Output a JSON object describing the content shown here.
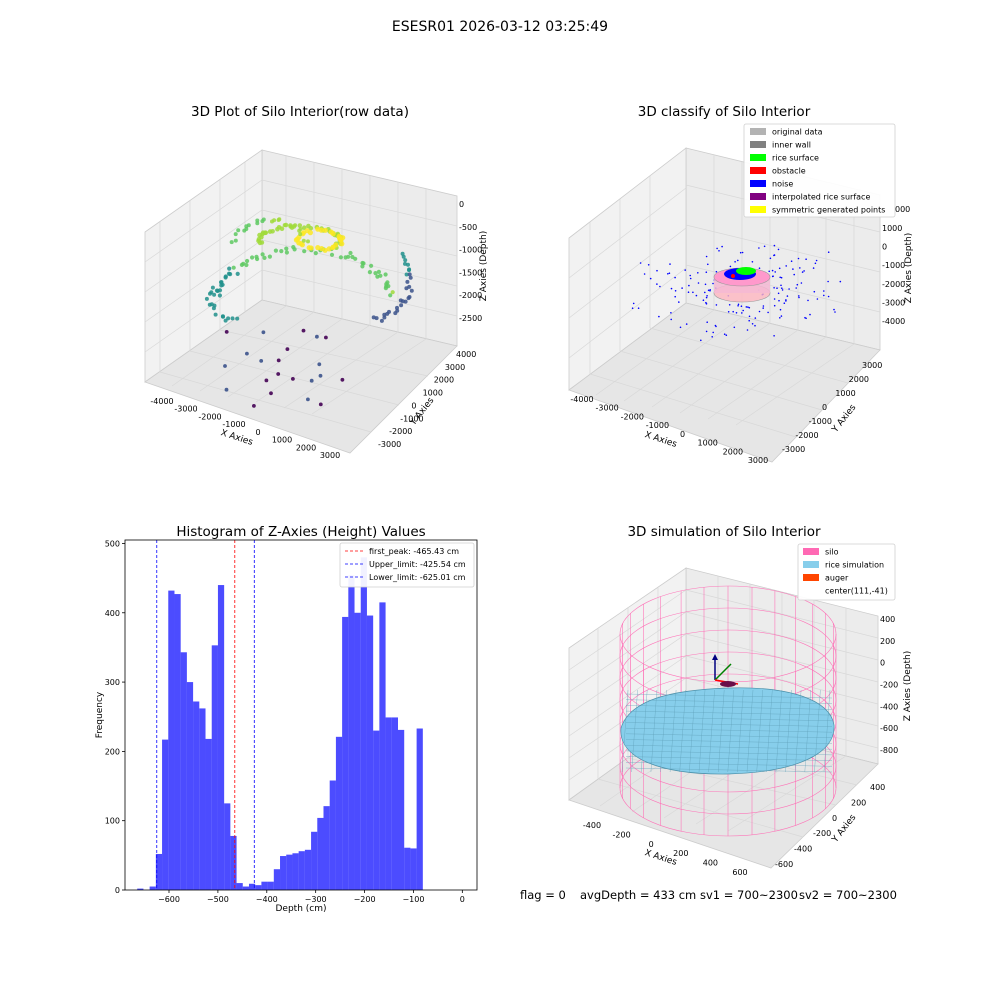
{
  "suptitle": "ESESR01 2026-03-12 03:25:49",
  "panels": {
    "raw": {
      "title": "3D Plot of Silo Interior(row data)",
      "xlabel": "X Axies",
      "ylabel": "Y Axies",
      "zlabel": "Z Axies (Depth)",
      "xticks": [
        "-4000",
        "-3000",
        "-2000",
        "-1000",
        "0",
        "1000",
        "2000",
        "3000"
      ],
      "yticks": [
        "-3000",
        "-2000",
        "-1000",
        "0",
        "1000",
        "2000",
        "3000",
        "4000"
      ],
      "zticks": [
        "0",
        "-500",
        "-1000",
        "-1500",
        "-2000",
        "-2500"
      ]
    },
    "classify": {
      "title": "3D classify of Silo Interior",
      "xlabel": "X Axies",
      "ylabel": "Y Axies",
      "zlabel": "Z Axies (Depth)",
      "xticks": [
        "-4000",
        "-3000",
        "-2000",
        "-1000",
        "0",
        "1000",
        "2000",
        "3000"
      ],
      "yticks": [
        "-3000",
        "-2000",
        "-1000",
        "0",
        "1000",
        "2000",
        "3000"
      ],
      "zticks": [
        "1000",
        "0",
        "-1000",
        "-2000",
        "-3000",
        "-4000"
      ],
      "ztick_partial": "000",
      "legend": [
        {
          "label": "original data",
          "color": "#b3b3b3"
        },
        {
          "label": "inner wall",
          "color": "#808080"
        },
        {
          "label": "rice surface",
          "color": "#00ff00"
        },
        {
          "label": "obstacle",
          "color": "#ff0000"
        },
        {
          "label": "noise",
          "color": "#0000ff"
        },
        {
          "label": "interpolated rice surface",
          "color": "#800080"
        },
        {
          "label": "symmetric generated points",
          "color": "#ffff00"
        }
      ]
    },
    "simulation": {
      "title": "3D simulation of Silo Interior",
      "xlabel": "X Axies",
      "ylabel": "Y Axies",
      "zlabel": "Z Axies (Depth)",
      "xticks": [
        "-400",
        "-200",
        "0",
        "200",
        "400",
        "600"
      ],
      "yticks": [
        "-600",
        "-400",
        "-200",
        "0",
        "200",
        "400"
      ],
      "zticks": [
        "400",
        "200",
        "0",
        "-200",
        "-400",
        "-600",
        "-800"
      ],
      "legend": [
        {
          "label": "silo",
          "color": "#ff69b4"
        },
        {
          "label": "rice simulation",
          "color": "#87ceeb"
        },
        {
          "label": "auger",
          "color": "#ff4500"
        },
        {
          "label": "center(111,-41)",
          "color": ""
        }
      ]
    }
  },
  "chart_data": {
    "type": "bar",
    "title": "Histogram of Z-Axies (Height) Values",
    "xlabel": "Depth (cm)",
    "ylabel": "Frequency",
    "xlim": [
      -690,
      30
    ],
    "ylim": [
      0,
      505
    ],
    "xticks": [
      -600,
      -500,
      -400,
      -300,
      -200,
      -100,
      0
    ],
    "yticks": [
      0,
      100,
      200,
      300,
      400,
      500
    ],
    "bin_start": -665,
    "bin_width": 12.7,
    "bar_color": "#0000ff",
    "values": [
      2,
      0,
      5,
      52,
      217,
      432,
      427,
      343,
      300,
      272,
      262,
      218,
      353,
      440,
      125,
      78,
      10,
      5,
      9,
      7,
      12,
      12,
      30,
      49,
      51,
      53,
      56,
      58,
      84,
      104,
      121,
      158,
      221,
      394,
      454,
      400,
      480,
      396,
      230,
      415,
      249,
      249,
      231,
      61,
      60,
      233
    ],
    "lines": [
      {
        "label": "first_peak: -465.43 cm",
        "x": -465.43,
        "color": "#ff0000"
      },
      {
        "label": "Upper_limit: -425.54 cm",
        "x": -425.54,
        "color": "#0000ff"
      },
      {
        "label": "Lower_limit: -625.01 cm",
        "x": -625.01,
        "color": "#0000ff"
      }
    ],
    "legend_position": "top-right"
  },
  "footer": {
    "flag": "flag = 0",
    "avg": "avgDepth = 433 cm",
    "sv1": "sv1 = 700~2300",
    "sv2": "sv2 = 700~2300"
  }
}
